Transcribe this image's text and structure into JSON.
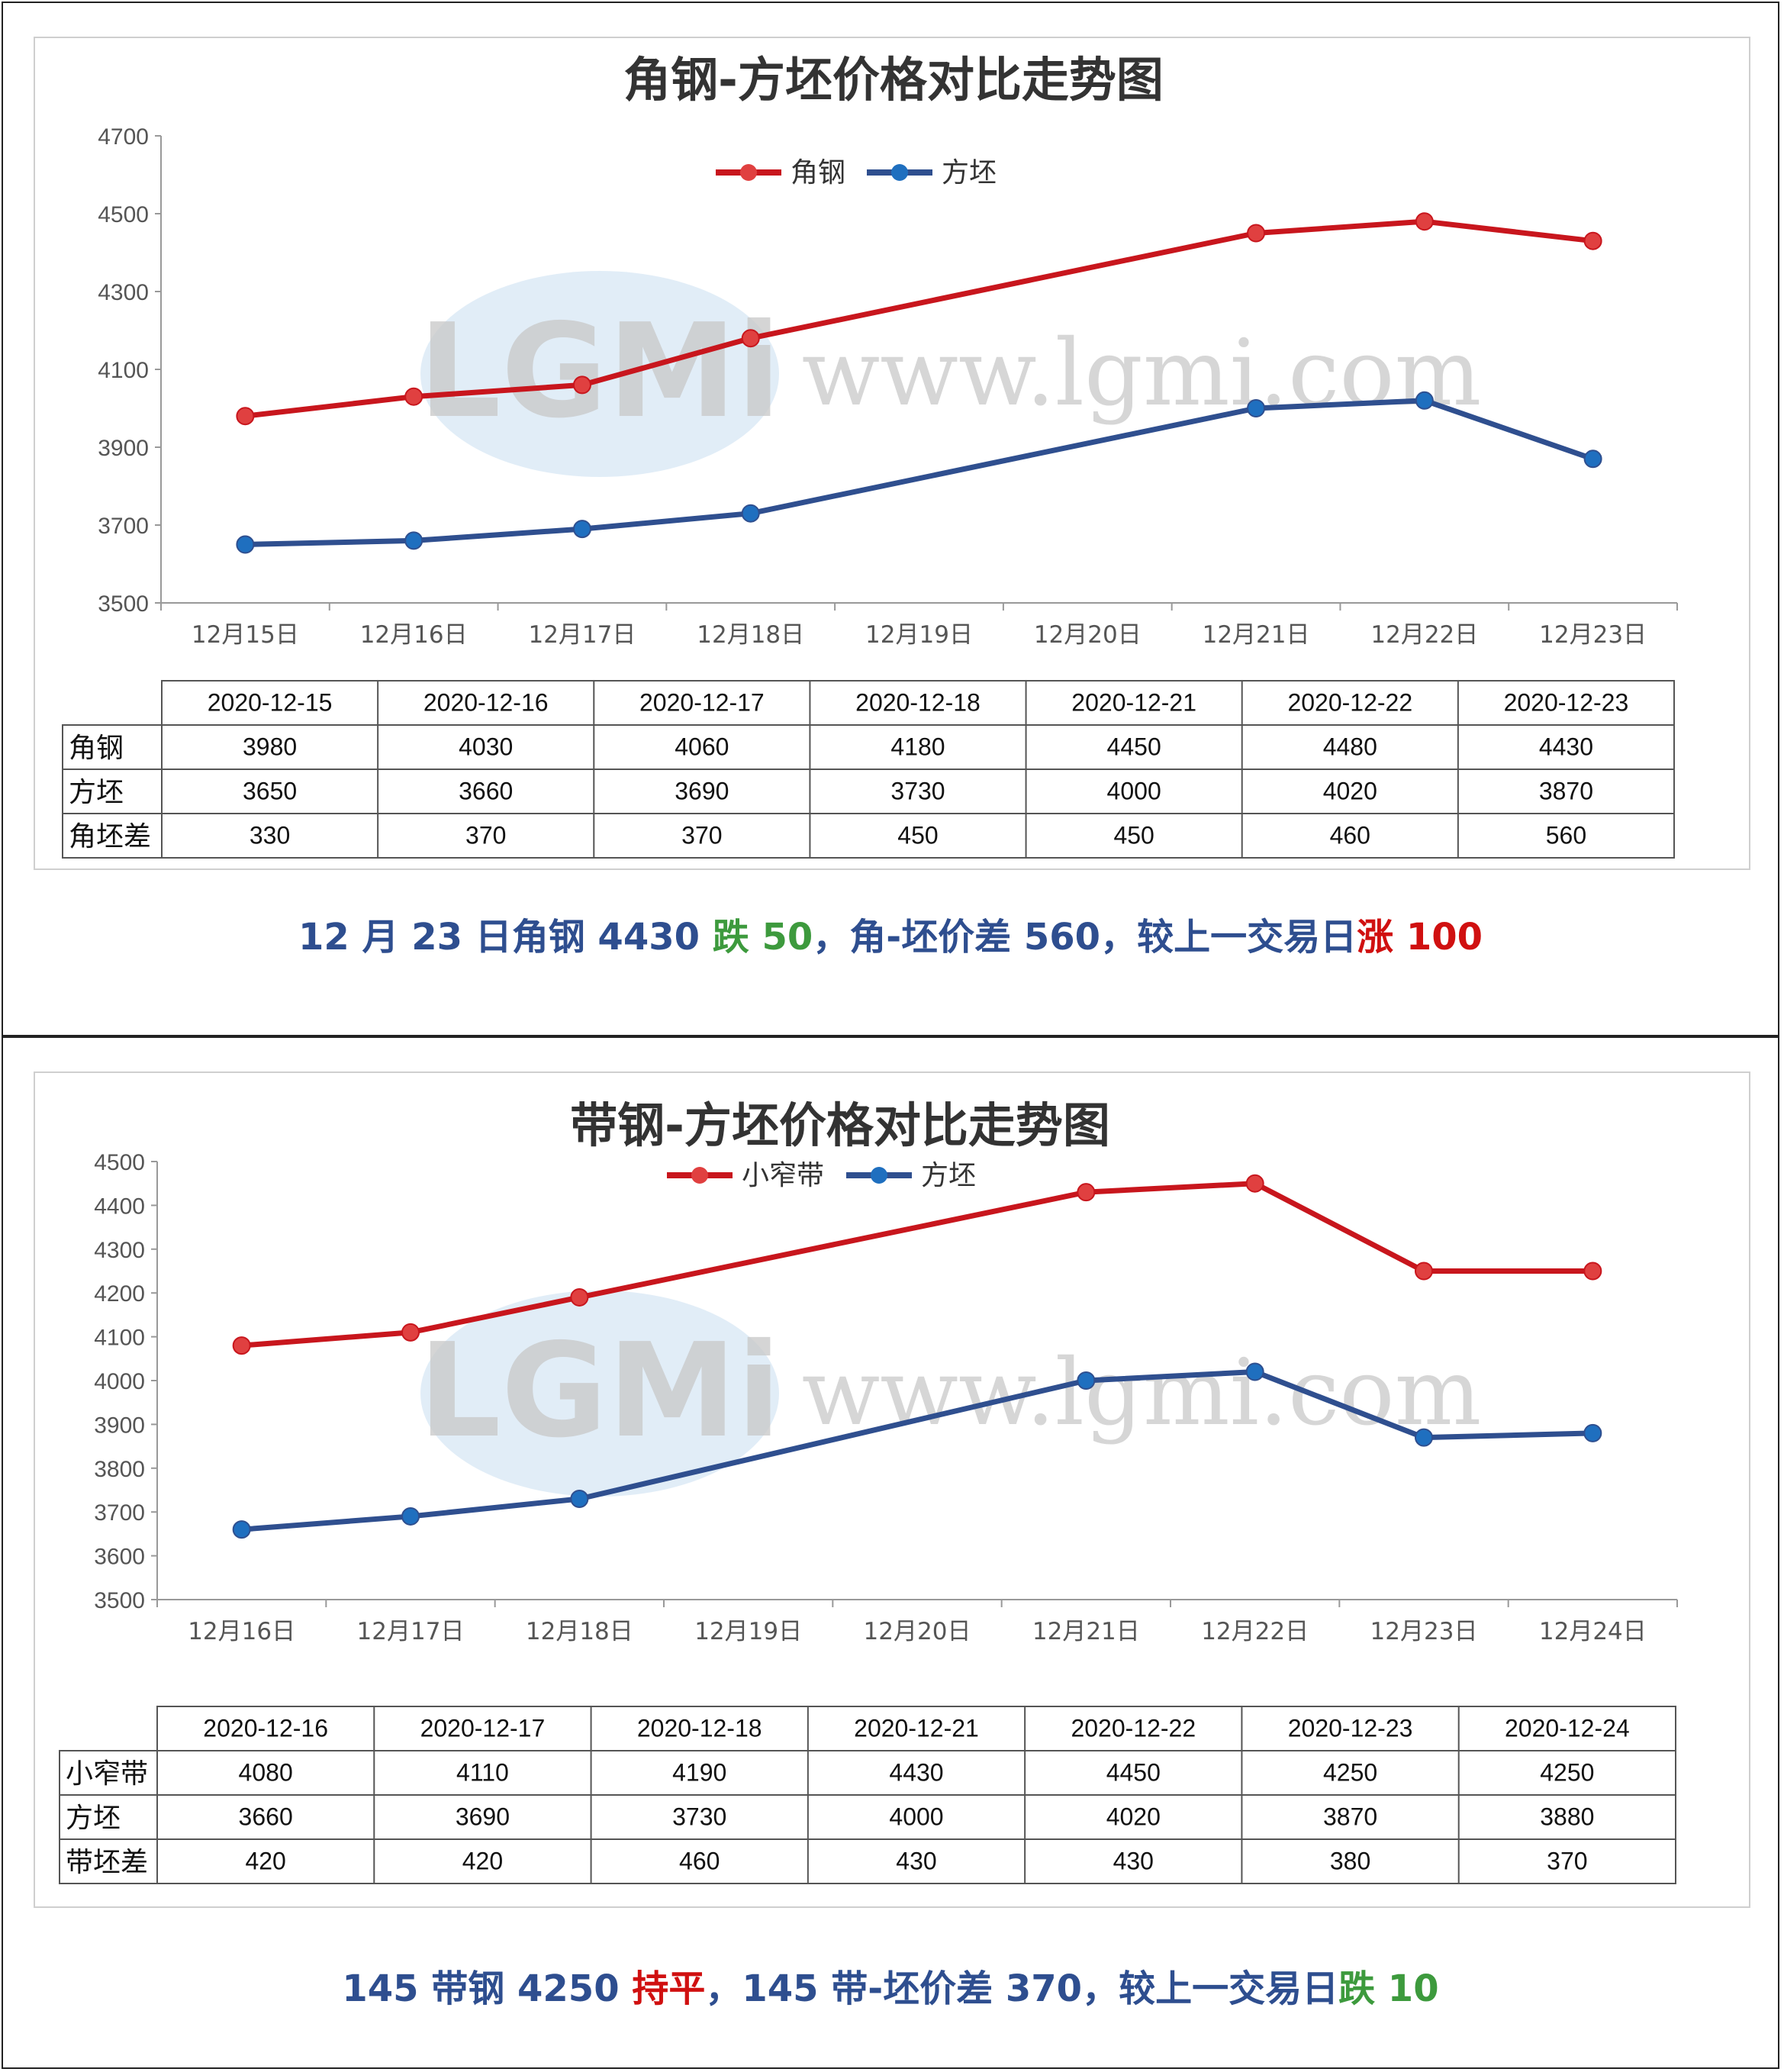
{
  "colors": {
    "series1": "#c8161d",
    "series2": "#2f4f8f",
    "marker1": "#e04040",
    "marker2": "#1f6fbf",
    "text_blue": "#2e4e8f",
    "text_green": "#3d9a3d",
    "text_red": "#d01010"
  },
  "watermark": {
    "logo": "LGMi",
    "url": "www.lgmi.com"
  },
  "chart_data": [
    {
      "type": "line",
      "title": "角钢-方坯价格对比走势图",
      "x": [
        "12月15日",
        "12月16日",
        "12月17日",
        "12月18日",
        "12月19日",
        "12月20日",
        "12月21日",
        "12月22日",
        "12月23日"
      ],
      "ylim": [
        3500,
        4700
      ],
      "yticks": [
        "3500",
        "3700",
        "3900",
        "4100",
        "4300",
        "4500",
        "4700"
      ],
      "legend_position": "top-center",
      "series": [
        {
          "name": "角钢",
          "points": [
            [
              0,
              3980
            ],
            [
              1,
              4030
            ],
            [
              2,
              4060
            ],
            [
              3,
              4180
            ],
            [
              6,
              4450
            ],
            [
              7,
              4480
            ],
            [
              8,
              4430
            ]
          ]
        },
        {
          "name": "方坯",
          "points": [
            [
              0,
              3650
            ],
            [
              1,
              3660
            ],
            [
              2,
              3690
            ],
            [
              3,
              3730
            ],
            [
              6,
              4000
            ],
            [
              7,
              4020
            ],
            [
              8,
              3870
            ]
          ]
        }
      ],
      "table": {
        "headers": [
          "2020-12-15",
          "2020-12-16",
          "2020-12-17",
          "2020-12-18",
          "2020-12-21",
          "2020-12-22",
          "2020-12-23"
        ],
        "rows": [
          {
            "label": "角钢",
            "values": [
              "3980",
              "4030",
              "4060",
              "4180",
              "4450",
              "4480",
              "4430"
            ]
          },
          {
            "label": "方坯",
            "values": [
              "3650",
              "3660",
              "3690",
              "3730",
              "4000",
              "4020",
              "3870"
            ]
          },
          {
            "label": "角坯差",
            "values": [
              "330",
              "370",
              "370",
              "450",
              "450",
              "460",
              "560"
            ]
          }
        ]
      }
    },
    {
      "type": "line",
      "title": "带钢-方坯价格对比走势图",
      "x": [
        "12月16日",
        "12月17日",
        "12月18日",
        "12月19日",
        "12月20日",
        "12月21日",
        "12月22日",
        "12月23日",
        "12月24日"
      ],
      "ylim": [
        3500,
        4500
      ],
      "yticks": [
        "3500",
        "3600",
        "3700",
        "3800",
        "3900",
        "4000",
        "4100",
        "4200",
        "4300",
        "4400",
        "4500"
      ],
      "legend_position": "top-center",
      "series": [
        {
          "name": "小窄带",
          "points": [
            [
              0,
              4080
            ],
            [
              1,
              4110
            ],
            [
              2,
              4190
            ],
            [
              5,
              4430
            ],
            [
              6,
              4450
            ],
            [
              7,
              4250
            ],
            [
              8,
              4250
            ]
          ]
        },
        {
          "name": "方坯",
          "points": [
            [
              0,
              3660
            ],
            [
              1,
              3690
            ],
            [
              2,
              3730
            ],
            [
              5,
              4000
            ],
            [
              6,
              4020
            ],
            [
              7,
              3870
            ],
            [
              8,
              3880
            ]
          ]
        }
      ],
      "table": {
        "headers": [
          "2020-12-16",
          "2020-12-17",
          "2020-12-18",
          "2020-12-21",
          "2020-12-22",
          "2020-12-23",
          "2020-12-24"
        ],
        "rows": [
          {
            "label": "小窄带",
            "values": [
              "4080",
              "4110",
              "4190",
              "4430",
              "4450",
              "4250",
              "4250"
            ]
          },
          {
            "label": "方坯",
            "values": [
              "3660",
              "3690",
              "3730",
              "4000",
              "4020",
              "3870",
              "3880"
            ]
          },
          {
            "label": "带坯差",
            "values": [
              "420",
              "420",
              "460",
              "430",
              "430",
              "380",
              "370"
            ]
          }
        ]
      }
    }
  ],
  "summary1": {
    "part1": "12 月 23 日角钢 4430 ",
    "part2": "跌 50",
    "part3": "，角-坯价差 560，较上一交易日",
    "part4": "涨",
    "part5": " 100"
  },
  "summary2": {
    "part1": "145 带钢 4250 ",
    "part2": "持平",
    "part3": "，145 带-坯价差 370，较上一交易日",
    "part4": "跌",
    "part5": " 10"
  }
}
